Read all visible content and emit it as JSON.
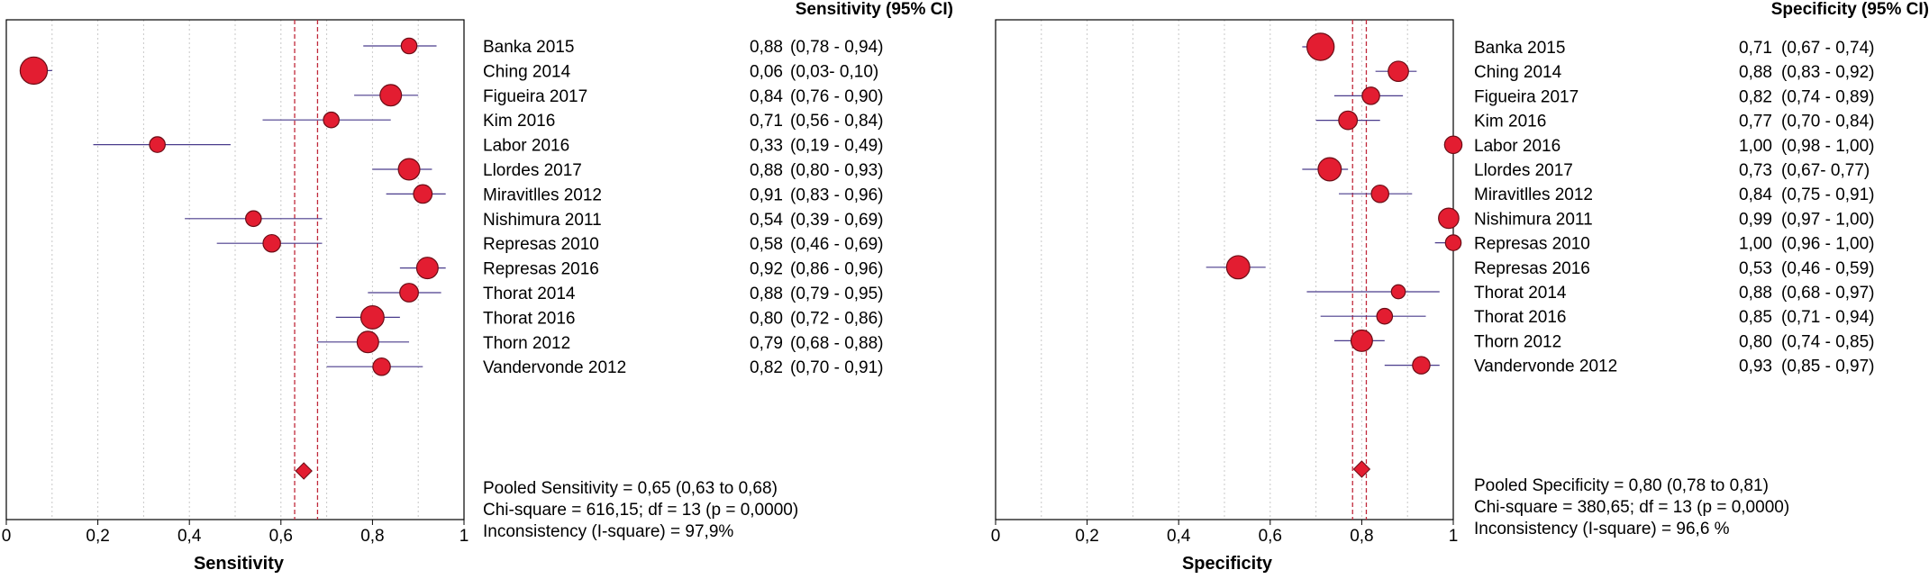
{
  "colors": {
    "marker": "#e31d31",
    "ci_line": "#4a3c8c",
    "pooled_line": "#c0283a",
    "grid": "#c8c8c8"
  },
  "panels": [
    {
      "id": "sensitivity",
      "header": "Sensitivity (95% CI)",
      "axis_title": "Sensitivity",
      "ticks": [
        "0",
        "0,2",
        "0,4",
        "0,6",
        "0,8",
        "1"
      ],
      "pooled_text": "Pooled Sensitivity = 0,65 (0,63 to 0,68)",
      "chi_text": "Chi-square = 616,15; df = 13 (p = 0,0000)",
      "incons_text": "Inconsistency (I-square) = 97,9%"
    },
    {
      "id": "specificity",
      "header": "Specificity (95% CI)",
      "axis_title": "Specificity",
      "ticks": [
        "0",
        "0,2",
        "0,4",
        "0,6",
        "0,8",
        "1"
      ],
      "pooled_text": "Pooled Specificity = 0,80 (0,78 to 0,81)",
      "chi_text": "Chi-square = 380,65; df = 13 (p = 0,0000)",
      "incons_text": "Inconsistency (I-square) = 96,6 %"
    }
  ],
  "chart_data": [
    {
      "type": "forest",
      "title": "Sensitivity (95% CI)",
      "xlabel": "Sensitivity",
      "xlim": [
        0,
        1
      ],
      "xticks": [
        0,
        0.2,
        0.4,
        0.6,
        0.8,
        1
      ],
      "grid": true,
      "studies": [
        {
          "label": "Banka 2015",
          "est": 0.88,
          "lo": 0.78,
          "hi": 0.94,
          "est_text": "0,88",
          "ci_text": "(0,78 - 0,94)",
          "weight": 1
        },
        {
          "label": "Ching 2014",
          "est": 0.06,
          "lo": 0.03,
          "hi": 0.1,
          "est_text": "0,06",
          "ci_text": "(0,03- 0,10)",
          "weight": 3
        },
        {
          "label": "Figueira 2017",
          "est": 0.84,
          "lo": 0.76,
          "hi": 0.9,
          "est_text": "0,84",
          "ci_text": "(0,76 - 0,90)",
          "weight": 2
        },
        {
          "label": "Kim 2016",
          "est": 0.71,
          "lo": 0.56,
          "hi": 0.84,
          "est_text": "0,71",
          "ci_text": "(0,56 - 0,84)",
          "weight": 1
        },
        {
          "label": "Labor 2016",
          "est": 0.33,
          "lo": 0.19,
          "hi": 0.49,
          "est_text": "0,33",
          "ci_text": "(0,19 - 0,49)",
          "weight": 1
        },
        {
          "label": "Llordes 2017",
          "est": 0.88,
          "lo": 0.8,
          "hi": 0.93,
          "est_text": "0,88",
          "ci_text": "(0,80 - 0,93)",
          "weight": 2
        },
        {
          "label": "Miravitlles 2012",
          "est": 0.91,
          "lo": 0.83,
          "hi": 0.96,
          "est_text": "0,91",
          "ci_text": "(0,83 - 0,96)",
          "weight": 1.5
        },
        {
          "label": "Nishimura 2011",
          "est": 0.54,
          "lo": 0.39,
          "hi": 0.69,
          "est_text": "0,54",
          "ci_text": "(0,39 - 0,69)",
          "weight": 1
        },
        {
          "label": "Represas 2010",
          "est": 0.58,
          "lo": 0.46,
          "hi": 0.69,
          "est_text": "0,58",
          "ci_text": "(0,46 - 0,69)",
          "weight": 1.3
        },
        {
          "label": "Represas 2016",
          "est": 0.92,
          "lo": 0.86,
          "hi": 0.96,
          "est_text": "0,92",
          "ci_text": "(0,86 - 0,96)",
          "weight": 2
        },
        {
          "label": "Thorat 2014",
          "est": 0.88,
          "lo": 0.79,
          "hi": 0.95,
          "est_text": "0,88",
          "ci_text": "(0,79 - 0,95)",
          "weight": 1.5
        },
        {
          "label": "Thorat 2016",
          "est": 0.8,
          "lo": 0.72,
          "hi": 0.86,
          "est_text": "0,80",
          "ci_text": "(0,72 - 0,86)",
          "weight": 2.3
        },
        {
          "label": "Thorn 2012",
          "est": 0.79,
          "lo": 0.68,
          "hi": 0.88,
          "est_text": "0,79",
          "ci_text": "(0,68 - 0,88)",
          "weight": 2
        },
        {
          "label": "Vandervonde 2012",
          "est": 0.82,
          "lo": 0.7,
          "hi": 0.91,
          "est_text": "0,82",
          "ci_text": "(0,70 - 0,91)",
          "weight": 1.3
        }
      ],
      "pooled": {
        "est": 0.65,
        "lo": 0.63,
        "hi": 0.68
      }
    },
    {
      "type": "forest",
      "title": "Specificity (95% CI)",
      "xlabel": "Specificity",
      "xlim": [
        0,
        1
      ],
      "xticks": [
        0,
        0.2,
        0.4,
        0.6,
        0.8,
        1
      ],
      "grid": true,
      "studies": [
        {
          "label": "Banka 2015",
          "est": 0.71,
          "lo": 0.67,
          "hi": 0.74,
          "est_text": "0,71",
          "ci_text": "(0,67 - 0,74)",
          "weight": 3
        },
        {
          "label": "Ching 2014",
          "est": 0.88,
          "lo": 0.83,
          "hi": 0.92,
          "est_text": "0,88",
          "ci_text": "(0,83 - 0,92)",
          "weight": 1.8
        },
        {
          "label": "Figueira 2017",
          "est": 0.82,
          "lo": 0.74,
          "hi": 0.89,
          "est_text": "0,82",
          "ci_text": "(0,74 - 0,89)",
          "weight": 1.3
        },
        {
          "label": "Kim 2016",
          "est": 0.77,
          "lo": 0.7,
          "hi": 0.84,
          "est_text": "0,77",
          "ci_text": "(0,70 - 0,84)",
          "weight": 1.5
        },
        {
          "label": "Labor 2016",
          "est": 1.0,
          "lo": 0.98,
          "hi": 1.0,
          "est_text": "1,00",
          "ci_text": "(0,98 - 1,00)",
          "weight": 1.3
        },
        {
          "label": "Llordes 2017",
          "est": 0.73,
          "lo": 0.67,
          "hi": 0.77,
          "est_text": "0,73",
          "ci_text": "(0,67- 0,77)",
          "weight": 2.3
        },
        {
          "label": "Miravitlles 2012",
          "est": 0.84,
          "lo": 0.75,
          "hi": 0.91,
          "est_text": "0,84",
          "ci_text": "(0,75 - 0,91)",
          "weight": 1.3
        },
        {
          "label": "Nishimura 2011",
          "est": 0.99,
          "lo": 0.97,
          "hi": 1.0,
          "est_text": "0,99",
          "ci_text": "(0,97 - 1,00)",
          "weight": 1.8
        },
        {
          "label": "Represas 2010",
          "est": 1.0,
          "lo": 0.96,
          "hi": 1.0,
          "est_text": "1,00",
          "ci_text": "(0,96 - 1,00)",
          "weight": 1
        },
        {
          "label": "Represas 2016",
          "est": 0.53,
          "lo": 0.46,
          "hi": 0.59,
          "est_text": "0,53",
          "ci_text": "(0,46 - 0,59)",
          "weight": 2.3
        },
        {
          "label": "Thorat 2014",
          "est": 0.88,
          "lo": 0.68,
          "hi": 0.97,
          "est_text": "0,88",
          "ci_text": "(0,68 - 0,97)",
          "weight": 0.7
        },
        {
          "label": "Thorat 2016",
          "est": 0.85,
          "lo": 0.71,
          "hi": 0.94,
          "est_text": "0,85",
          "ci_text": "(0,71 - 0,94)",
          "weight": 1
        },
        {
          "label": "Thorn 2012",
          "est": 0.8,
          "lo": 0.74,
          "hi": 0.85,
          "est_text": "0,80",
          "ci_text": "(0,74 - 0,85)",
          "weight": 2
        },
        {
          "label": "Vandervonde 2012",
          "est": 0.93,
          "lo": 0.85,
          "hi": 0.97,
          "est_text": "0,93",
          "ci_text": "(0,85 - 0,97)",
          "weight": 1.3
        }
      ],
      "pooled": {
        "est": 0.8,
        "lo": 0.78,
        "hi": 0.81
      }
    }
  ]
}
